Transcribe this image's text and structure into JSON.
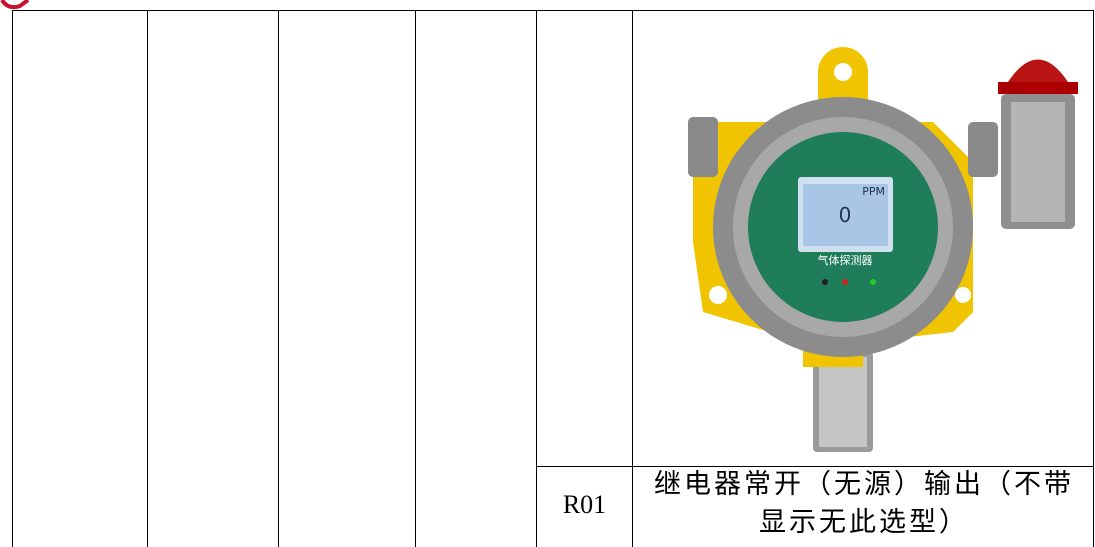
{
  "table": {
    "rows": [
      [
        "R01",
        "继电器常开（无源）输出（不带显示无此选型）"
      ]
    ]
  },
  "device": {
    "unit": "PPM",
    "reading": "0",
    "label": "气体探测器"
  }
}
